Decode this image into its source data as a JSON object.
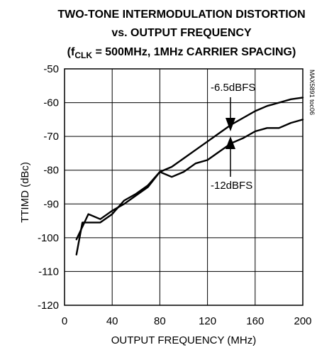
{
  "chart_data": {
    "type": "line",
    "title_lines": [
      "TWO-TONE INTERMODULATION DISTORTION",
      "vs. OUTPUT FREQUENCY"
    ],
    "subtitle": {
      "open": "(f",
      "sub": "CLK",
      "rest": " = 500MHz, 1MHz CARRIER SPACING)"
    },
    "xlabel": "OUTPUT FREQUENCY (MHz)",
    "ylabel": "TTIMD (dBc)",
    "xlim": [
      0,
      200
    ],
    "ylim": [
      -120,
      -50
    ],
    "x_ticks": [
      0,
      40,
      80,
      120,
      160,
      200
    ],
    "y_ticks": [
      -50,
      -60,
      -70,
      -80,
      -90,
      -100,
      -110,
      -120
    ],
    "grid": true,
    "part_number": "MAX5891 toc06",
    "series": [
      {
        "name": "-6.5dBFS",
        "x": [
          10,
          20,
          30,
          40,
          50,
          60,
          70,
          80,
          90,
          100,
          110,
          120,
          130,
          140,
          150,
          160,
          170,
          180,
          190,
          200
        ],
        "y": [
          -100.5,
          -93,
          -94.5,
          -92,
          -90,
          -87.5,
          -85,
          -80.5,
          -79,
          -76.5,
          -74,
          -71.5,
          -69,
          -66.5,
          -64.5,
          -62.5,
          -61,
          -60,
          -59,
          -58.5
        ]
      },
      {
        "name": "-12dBFS",
        "x": [
          10,
          15,
          20,
          30,
          40,
          50,
          60,
          70,
          80,
          90,
          100,
          110,
          120,
          130,
          140,
          150,
          160,
          170,
          180,
          190,
          200
        ],
        "y": [
          -105,
          -95.5,
          -95.5,
          -95.5,
          -93,
          -89,
          -87,
          -84.5,
          -80.5,
          -82,
          -80.5,
          -78,
          -77,
          -74.5,
          -72,
          -70.5,
          -68.5,
          -67.5,
          -67.5,
          -66,
          -65
        ]
      }
    ],
    "annotations": [
      {
        "text": "-6.5dBFS",
        "series": 0
      },
      {
        "text": "-12dBFS",
        "series": 1
      }
    ]
  }
}
